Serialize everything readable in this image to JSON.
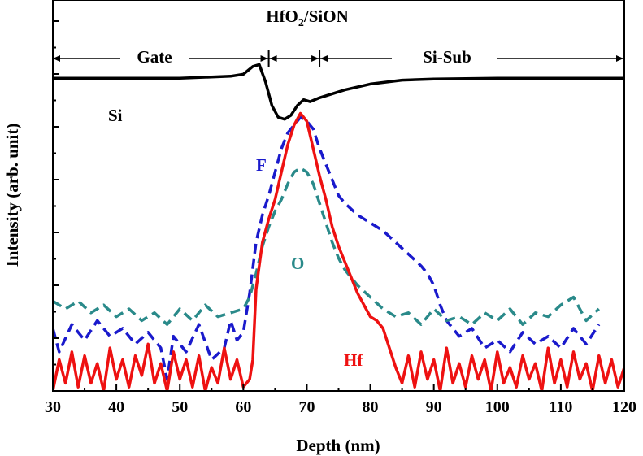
{
  "chart_data": {
    "type": "line",
    "xlabel": "Depth (nm)",
    "ylabel": "Intensity (arb. unit)",
    "xlim": [
      30,
      120
    ],
    "ylim": [
      0,
      100
    ],
    "x_ticks": [
      30,
      40,
      50,
      60,
      70,
      80,
      90,
      100,
      110,
      120
    ],
    "y_tick_count": 7,
    "y_tick_labels_shown": false,
    "grid": false,
    "regions": {
      "header_main": "HfO",
      "header_sub": "2",
      "header_rest": "/SiON",
      "gate": "Gate",
      "substrate": "Si-Sub",
      "gate_range": [
        30,
        64
      ],
      "interface_range": [
        64,
        72
      ],
      "substrate_range": [
        72,
        120
      ]
    },
    "series": [
      {
        "name": "Si",
        "color": "#000000",
        "dash": "solid",
        "x": [
          30,
          40,
          50,
          58,
          60,
          61.5,
          62.5,
          63.5,
          64.5,
          65.5,
          66.5,
          67.5,
          68.5,
          69.5,
          70.5,
          72,
          74,
          76,
          80,
          85,
          90,
          100,
          110,
          120
        ],
        "y": [
          80,
          80,
          80,
          80.5,
          81,
          83,
          83.5,
          79,
          73,
          70,
          69.5,
          70.5,
          73,
          74.5,
          74,
          75,
          76,
          77,
          78.5,
          79.5,
          79.8,
          80,
          80,
          80
        ]
      },
      {
        "name": "F",
        "color": "#1a1acc",
        "dash": "dash",
        "x": [
          30,
          31,
          33,
          35,
          37,
          39,
          41,
          43,
          45,
          47,
          48,
          49,
          51,
          53,
          55,
          57,
          58,
          59,
          60,
          61,
          62,
          63,
          64,
          65,
          66,
          67,
          68,
          69,
          70,
          71,
          72,
          73,
          74,
          75,
          76,
          78,
          80,
          82,
          84,
          86,
          88,
          89,
          90,
          91,
          92,
          94,
          96,
          98,
          100,
          102,
          104,
          106,
          108,
          110,
          112,
          114,
          116
        ],
        "y": [
          16,
          10,
          17,
          13,
          18,
          14,
          16,
          12,
          15,
          11,
          3,
          14,
          10,
          17,
          8,
          11,
          18,
          13,
          15,
          25,
          38,
          45,
          50,
          56,
          62,
          66,
          68,
          70,
          69,
          67,
          62,
          58,
          54,
          50,
          48,
          45,
          43,
          41,
          38,
          35,
          32,
          30,
          27,
          22,
          18,
          14,
          16,
          11,
          13,
          10,
          15,
          12,
          14,
          11,
          16,
          12,
          17
        ]
      },
      {
        "name": "O",
        "color": "#2a8a8a",
        "dash": "dash",
        "x": [
          30,
          32,
          34,
          36,
          38,
          40,
          42,
          44,
          46,
          48,
          50,
          52,
          54,
          56,
          58,
          60,
          61,
          62,
          63,
          64,
          65,
          66,
          67,
          68,
          69,
          70,
          71,
          72,
          73,
          74,
          75,
          76,
          78,
          80,
          82,
          84,
          86,
          88,
          90,
          92,
          94,
          96,
          98,
          100,
          102,
          104,
          106,
          108,
          110,
          112,
          114,
          116
        ],
        "y": [
          23,
          21,
          23,
          20,
          22,
          19,
          21,
          18,
          20,
          17,
          21,
          18,
          22,
          19,
          20,
          21,
          24,
          30,
          37,
          42,
          46,
          49,
          53,
          56,
          57,
          56,
          53,
          48,
          43,
          38,
          34,
          31,
          27,
          24,
          21,
          19,
          20,
          17,
          21,
          18,
          19,
          17,
          20,
          18,
          21,
          17,
          20,
          19,
          22,
          24,
          18,
          21
        ]
      },
      {
        "name": "Hf",
        "color": "#ee1111",
        "dash": "solid",
        "x": [
          30,
          31,
          32,
          33,
          34,
          35,
          36,
          37,
          38,
          39,
          40,
          41,
          42,
          43,
          44,
          45,
          46,
          47,
          48,
          49,
          50,
          51,
          52,
          53,
          54,
          55,
          56,
          57,
          58,
          59,
          60,
          61,
          61.5,
          62,
          63,
          64,
          65,
          66,
          67,
          68,
          69,
          70,
          71,
          72,
          73,
          74,
          75,
          76,
          77,
          78,
          79,
          80,
          81,
          82,
          83,
          84,
          85,
          86,
          87,
          88,
          89,
          90,
          91,
          92,
          93,
          94,
          95,
          96,
          97,
          98,
          99,
          100,
          101,
          102,
          103,
          104,
          105,
          106,
          107,
          108,
          109,
          110,
          111,
          112,
          113,
          114,
          115,
          116,
          117,
          118,
          119,
          120
        ],
        "y": [
          0,
          8,
          2,
          10,
          1,
          9,
          2,
          7,
          0,
          11,
          3,
          8,
          1,
          9,
          4,
          12,
          2,
          7,
          0,
          10,
          3,
          8,
          1,
          9,
          0,
          6,
          2,
          11,
          3,
          8,
          1,
          3,
          8,
          26,
          38,
          44,
          49,
          56,
          63,
          68,
          71,
          69,
          62,
          55,
          49,
          42,
          37,
          33,
          29,
          25,
          22,
          19,
          18,
          16,
          11,
          6,
          2,
          9,
          1,
          10,
          3,
          8,
          0,
          11,
          2,
          7,
          1,
          9,
          3,
          8,
          0,
          10,
          2,
          6,
          1,
          9,
          3,
          7,
          0,
          11,
          2,
          8,
          1,
          10,
          3,
          7,
          0,
          9,
          2,
          8,
          1,
          6
        ]
      }
    ]
  }
}
